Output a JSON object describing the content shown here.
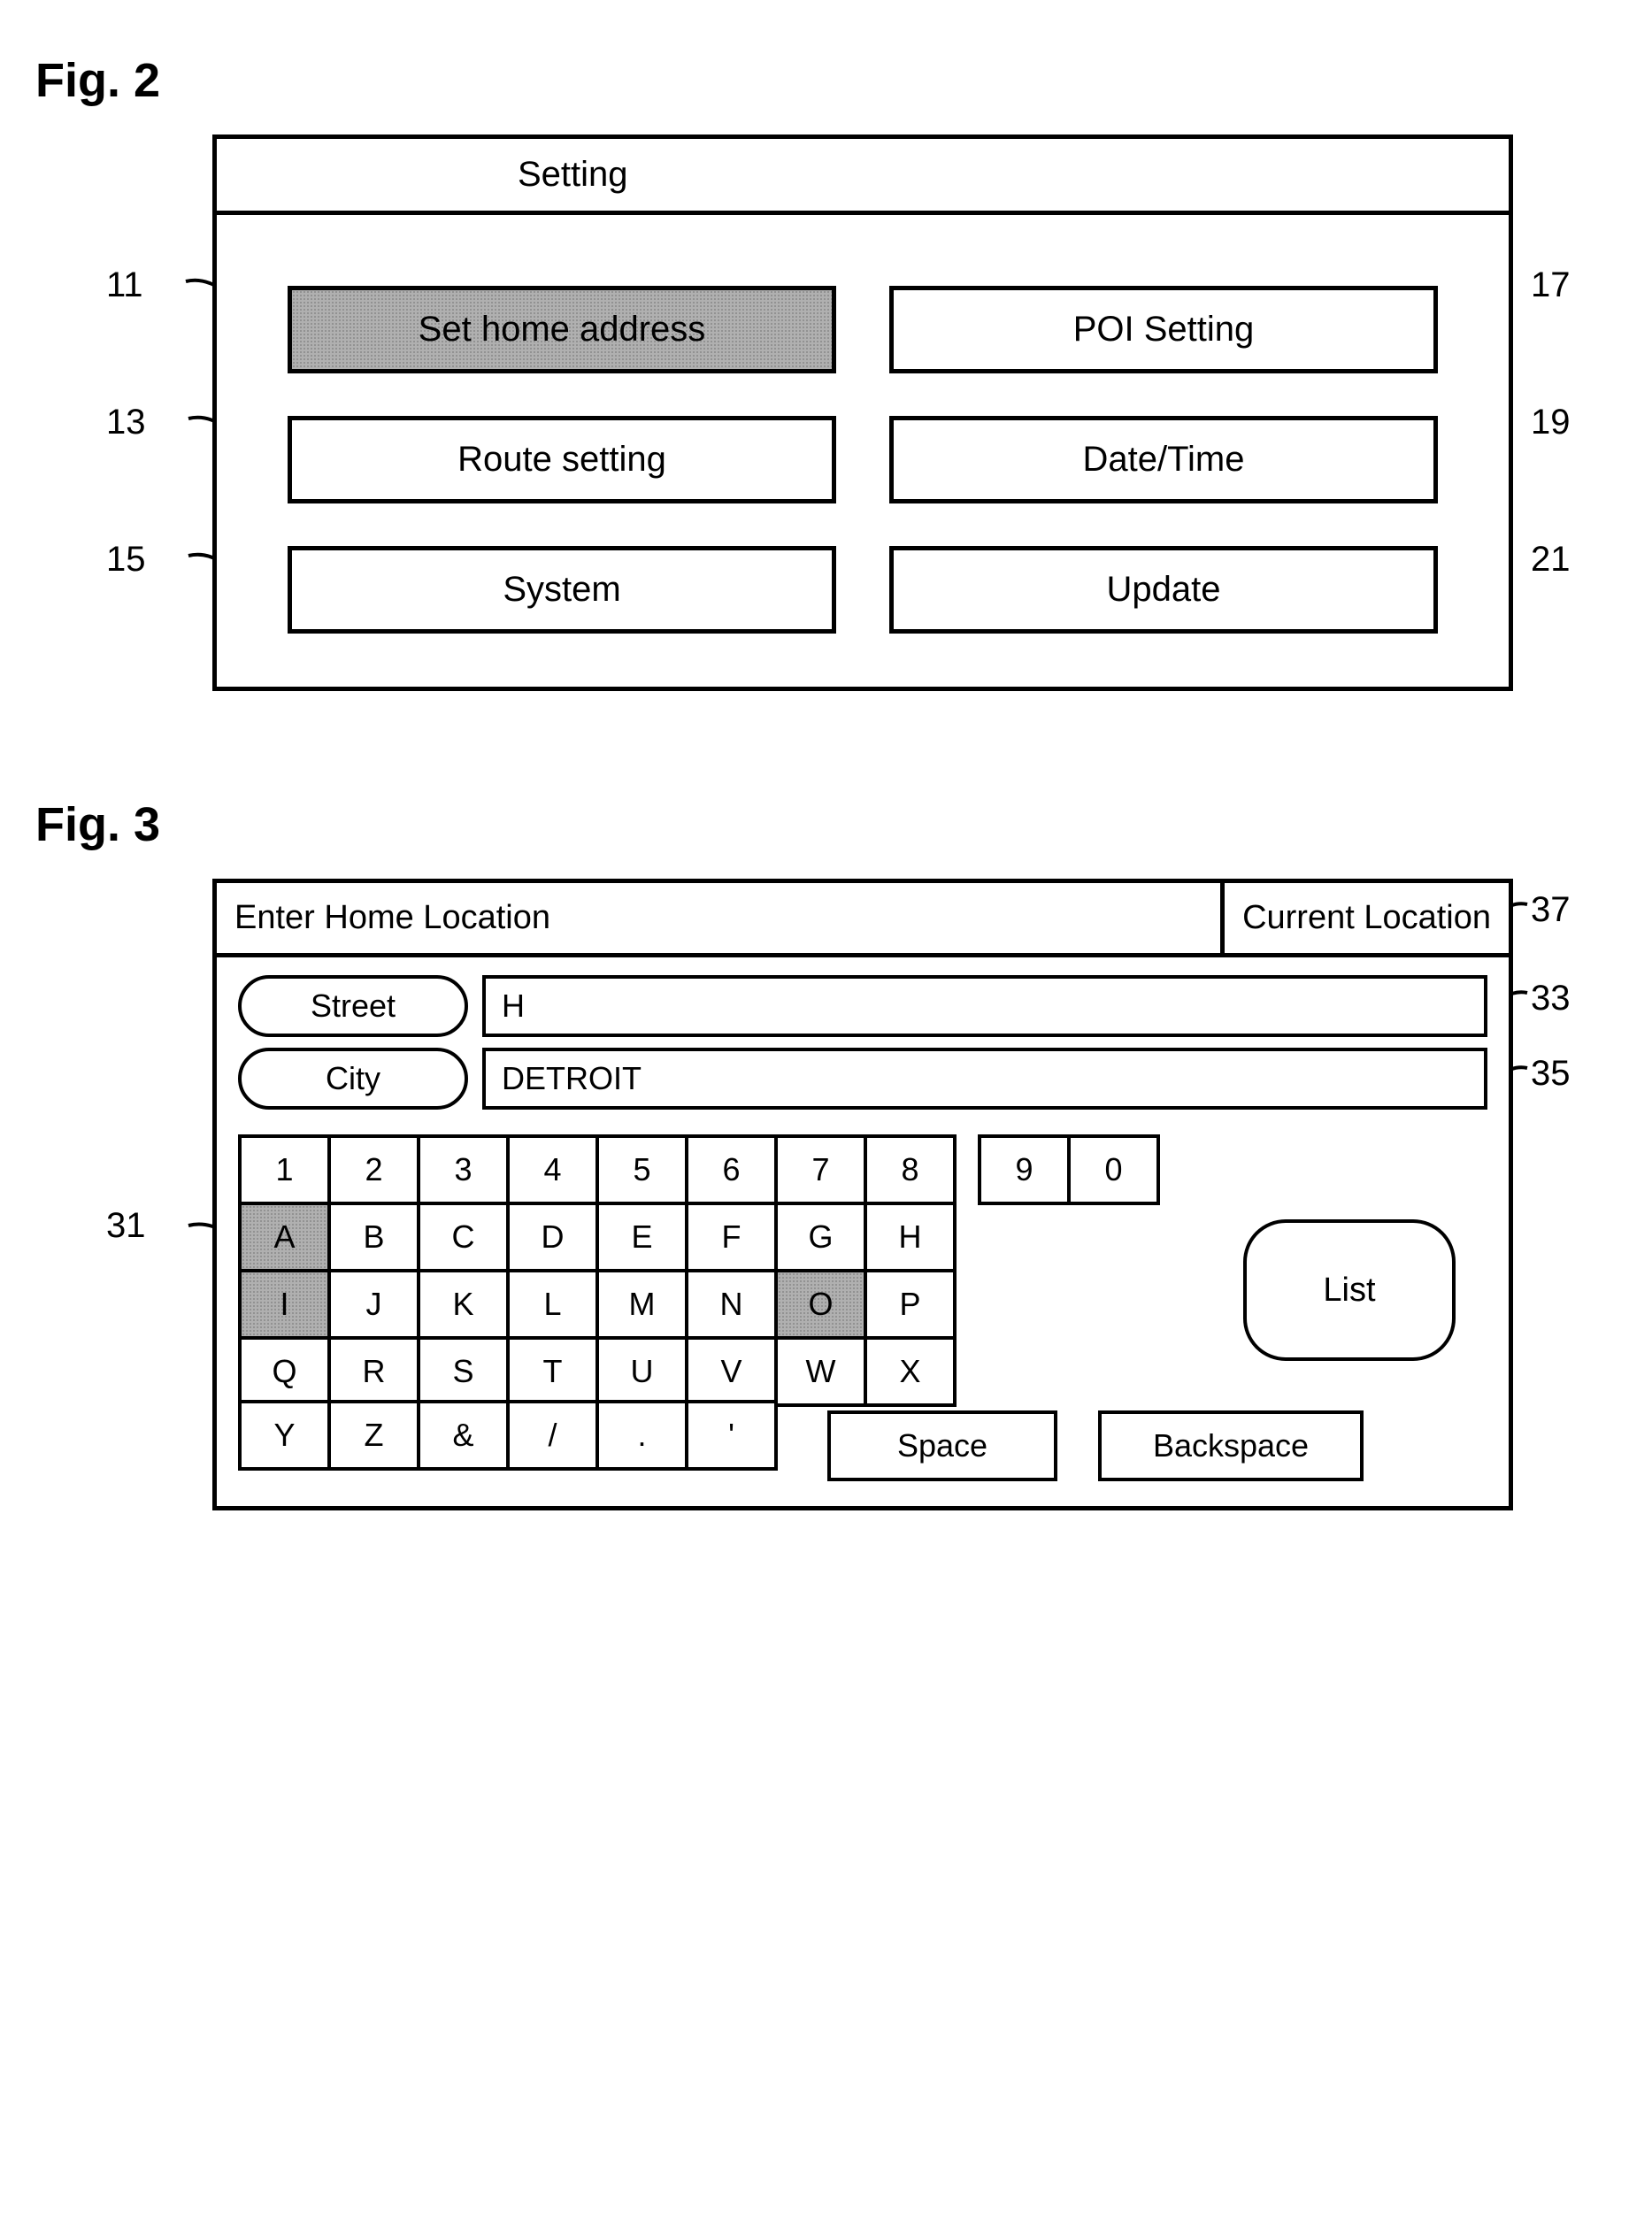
{
  "fig2": {
    "label": "Fig. 2",
    "title": "Setting",
    "buttons": [
      {
        "label": "Set home address",
        "ref": "11",
        "highlighted": true
      },
      {
        "label": "POI Setting",
        "ref": "17",
        "highlighted": false
      },
      {
        "label": "Route setting",
        "ref": "13",
        "highlighted": false
      },
      {
        "label": "Date/Time",
        "ref": "19",
        "highlighted": false
      },
      {
        "label": "System",
        "ref": "15",
        "highlighted": false
      },
      {
        "label": "Update",
        "ref": "21",
        "highlighted": false
      }
    ]
  },
  "fig3": {
    "label": "Fig. 3",
    "header_left": "Enter Home Location",
    "header_right": "Current Location",
    "header_right_ref": "37",
    "street_label": "Street",
    "street_value": "H",
    "street_field_ref": "33",
    "city_label": "City",
    "city_value": "DETROIT",
    "city_field_ref": "35",
    "keyboard_ref": "31",
    "row1": [
      "1",
      "2",
      "3",
      "4",
      "5",
      "6",
      "7",
      "8",
      "9",
      "0"
    ],
    "row2": [
      "A",
      "B",
      "C",
      "D",
      "E",
      "F",
      "G",
      "H"
    ],
    "row2_hl": [
      true,
      false,
      false,
      false,
      false,
      false,
      false,
      false
    ],
    "row3": [
      "I",
      "J",
      "K",
      "L",
      "M",
      "N",
      "O",
      "P"
    ],
    "row3_hl": [
      true,
      false,
      false,
      false,
      false,
      false,
      true,
      false
    ],
    "row4": [
      "Q",
      "R",
      "S",
      "T",
      "U",
      "V",
      "W",
      "X"
    ],
    "row5": [
      "Y",
      "Z",
      "&",
      "/",
      ".",
      "'"
    ],
    "list_label": "List",
    "space_label": "Space",
    "backspace_label": "Backspace"
  }
}
